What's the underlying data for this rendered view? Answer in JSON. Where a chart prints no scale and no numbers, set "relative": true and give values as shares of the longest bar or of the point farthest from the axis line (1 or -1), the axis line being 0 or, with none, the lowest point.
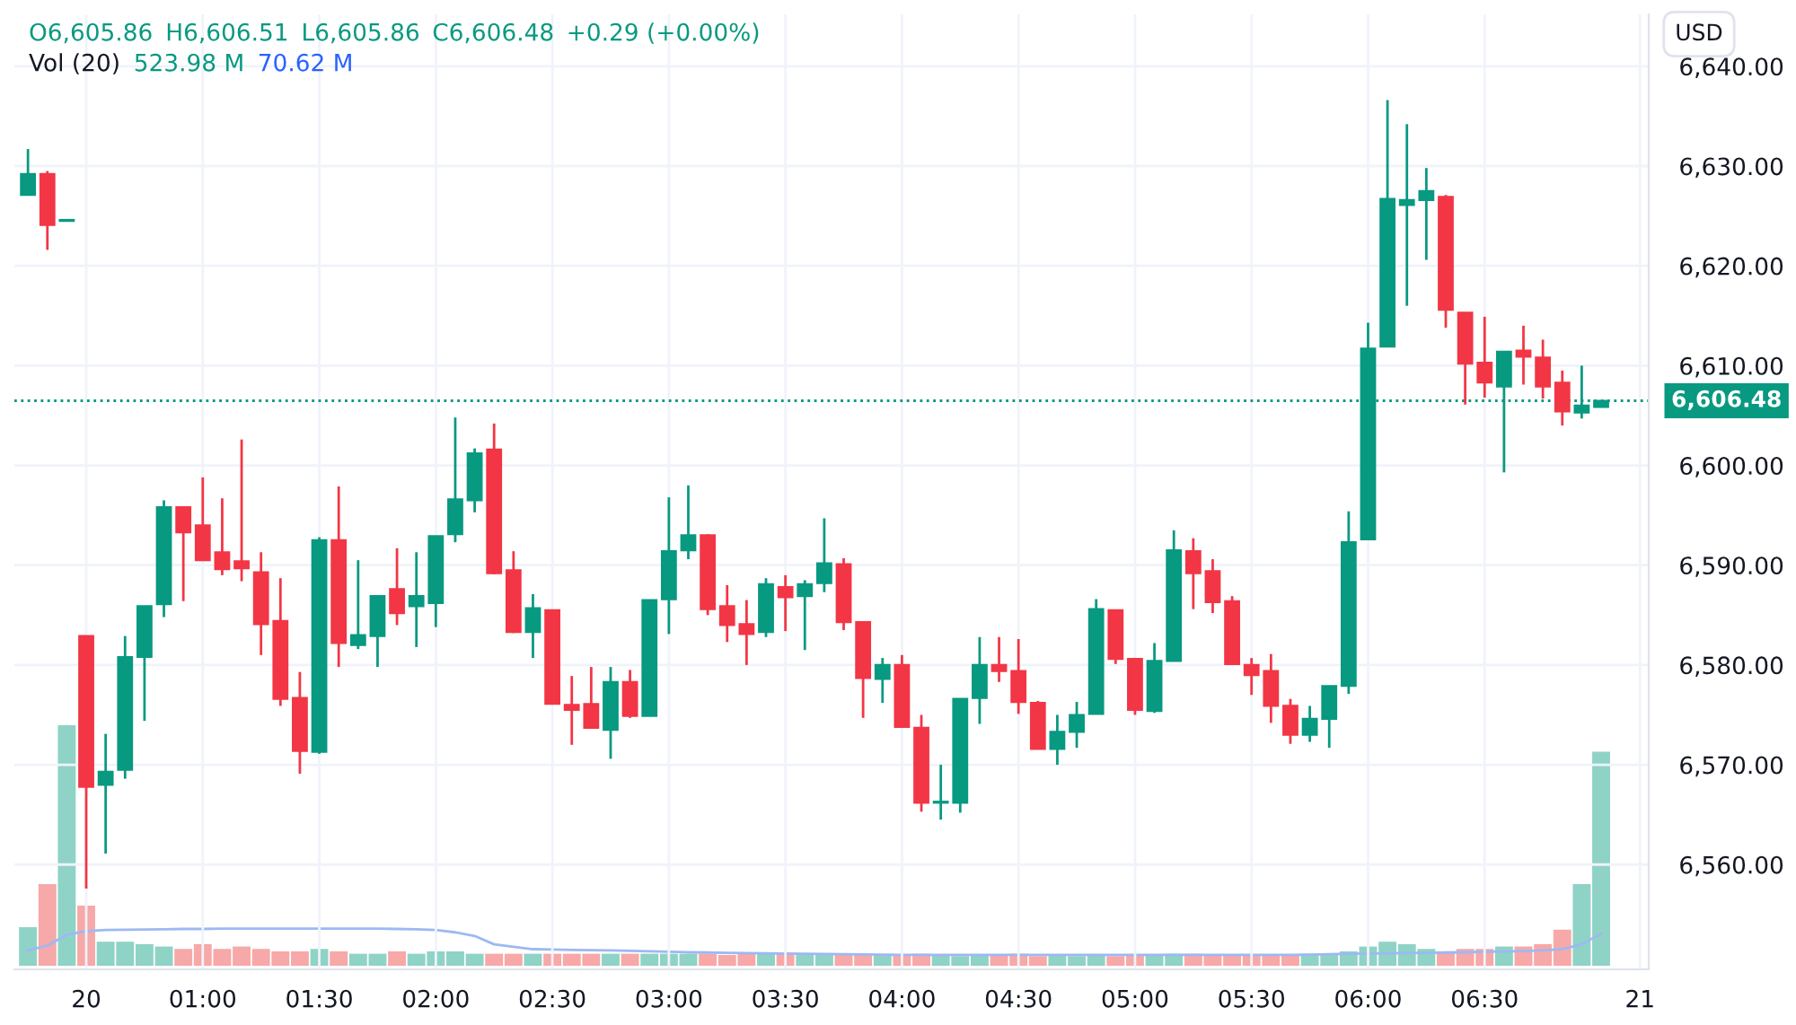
{
  "chart_data": [
    {
      "type": "candlestick",
      "categories": [
        null,
        null,
        null,
        "20",
        null,
        null,
        null,
        null,
        null,
        "01:00",
        null,
        null,
        null,
        null,
        null,
        "01:30",
        null,
        null,
        null,
        null,
        null,
        "02:00",
        null,
        null,
        null,
        null,
        null,
        "02:30",
        null,
        null,
        null,
        null,
        null,
        "03:00",
        null,
        null,
        null,
        null,
        null,
        "03:30",
        null,
        null,
        null,
        null,
        null,
        "04:00",
        null,
        null,
        null,
        null,
        null,
        "04:30",
        null,
        null,
        null,
        null,
        null,
        "05:00",
        null,
        null,
        null,
        null,
        null,
        "05:30",
        null,
        null,
        null,
        null,
        null,
        "06:00",
        null,
        null,
        null,
        null,
        null,
        "06:30",
        null,
        null,
        null,
        null,
        null,
        null,
        null,
        "21"
      ],
      "ohlc": [
        [
          6627.1,
          6631.7,
          6627.1,
          6629.2
        ],
        [
          6629.2,
          6629.5,
          6621.6,
          6624.1
        ],
        [
          6624.5,
          6624.6,
          6624.5,
          6624.6
        ],
        [
          6582.9,
          6582.9,
          6557.6,
          6567.8
        ],
        [
          6568.0,
          6573.1,
          6561.1,
          6569.3
        ],
        [
          6569.5,
          6582.9,
          6568.6,
          6580.8
        ],
        [
          6580.8,
          6585.9,
          6574.4,
          6585.9
        ],
        [
          6586.1,
          6596.5,
          6584.8,
          6595.8
        ],
        [
          6595.8,
          6595.8,
          6586.4,
          6593.3
        ],
        [
          6594.0,
          6598.8,
          6590.5,
          6590.5
        ],
        [
          6591.3,
          6596.7,
          6589.0,
          6589.6
        ],
        [
          6590.4,
          6602.6,
          6588.4,
          6589.7
        ],
        [
          6589.3,
          6591.3,
          6581.0,
          6584.1
        ],
        [
          6584.4,
          6588.7,
          6575.9,
          6576.6
        ],
        [
          6576.7,
          6579.3,
          6569.1,
          6571.4
        ],
        [
          6571.3,
          6592.8,
          6571.1,
          6592.5
        ],
        [
          6592.5,
          6597.9,
          6579.8,
          6582.2
        ],
        [
          6582.0,
          6590.5,
          6581.6,
          6583.0
        ],
        [
          6582.9,
          6586.9,
          6579.8,
          6586.9
        ],
        [
          6587.6,
          6591.7,
          6584.0,
          6585.2
        ],
        [
          6585.9,
          6591.3,
          6581.8,
          6586.9
        ],
        [
          6586.2,
          6592.9,
          6583.8,
          6592.9
        ],
        [
          6593.1,
          6604.8,
          6592.3,
          6596.6
        ],
        [
          6596.5,
          6601.7,
          6595.3,
          6601.2
        ],
        [
          6601.6,
          6604.2,
          6589.1,
          6589.2
        ],
        [
          6589.5,
          6591.4,
          6583.2,
          6583.3
        ],
        [
          6583.3,
          6587.1,
          6580.7,
          6585.7
        ],
        [
          6585.5,
          6585.5,
          6576.1,
          6576.1
        ],
        [
          6576.0,
          6578.9,
          6572.0,
          6575.5
        ],
        [
          6576.1,
          6579.8,
          6573.7,
          6573.7
        ],
        [
          6573.5,
          6579.8,
          6570.6,
          6578.3
        ],
        [
          6578.3,
          6579.5,
          6574.7,
          6574.9
        ],
        [
          6574.9,
          6586.5,
          6574.9,
          6586.5
        ],
        [
          6586.6,
          6596.8,
          6583.1,
          6591.4
        ],
        [
          6591.5,
          6598.0,
          6590.6,
          6593.0
        ],
        [
          6593.0,
          6593.1,
          6585.0,
          6585.6
        ],
        [
          6585.9,
          6588.0,
          6582.3,
          6584.0
        ],
        [
          6584.1,
          6586.5,
          6580.0,
          6583.1
        ],
        [
          6583.3,
          6588.7,
          6582.8,
          6588.1
        ],
        [
          6587.8,
          6589.0,
          6583.4,
          6586.8
        ],
        [
          6586.9,
          6588.5,
          6581.5,
          6588.1
        ],
        [
          6588.2,
          6594.7,
          6587.3,
          6590.2
        ],
        [
          6590.1,
          6590.7,
          6583.5,
          6584.3
        ],
        [
          6584.3,
          6584.3,
          6574.7,
          6578.7
        ],
        [
          6578.6,
          6580.7,
          6576.2,
          6580.0
        ],
        [
          6580.0,
          6581.0,
          6573.8,
          6573.8
        ],
        [
          6573.7,
          6575.0,
          6565.3,
          6566.2
        ],
        [
          6566.2,
          6570.0,
          6564.5,
          6566.3
        ],
        [
          6566.2,
          6576.6,
          6565.2,
          6576.6
        ],
        [
          6576.7,
          6582.8,
          6574.1,
          6580.0
        ],
        [
          6580.0,
          6582.8,
          6578.3,
          6579.4
        ],
        [
          6579.4,
          6582.6,
          6575.1,
          6576.3
        ],
        [
          6576.2,
          6576.4,
          6571.6,
          6571.6
        ],
        [
          6571.6,
          6575.0,
          6570.0,
          6573.3
        ],
        [
          6573.3,
          6576.3,
          6571.7,
          6575.0
        ],
        [
          6575.1,
          6586.6,
          6575.1,
          6585.6
        ],
        [
          6585.5,
          6585.5,
          6580.1,
          6580.6
        ],
        [
          6580.6,
          6580.7,
          6575.0,
          6575.5
        ],
        [
          6575.4,
          6582.2,
          6575.2,
          6580.4
        ],
        [
          6580.4,
          6593.5,
          6580.4,
          6591.5
        ],
        [
          6591.4,
          6592.7,
          6585.6,
          6589.2
        ],
        [
          6589.4,
          6590.6,
          6585.2,
          6586.3
        ],
        [
          6586.4,
          6586.9,
          6580.1,
          6580.1
        ],
        [
          6580.0,
          6580.7,
          6577.0,
          6579.0
        ],
        [
          6579.4,
          6581.1,
          6574.2,
          6575.9
        ],
        [
          6575.9,
          6576.6,
          6572.1,
          6573.0
        ],
        [
          6573.0,
          6575.9,
          6572.3,
          6574.6
        ],
        [
          6574.6,
          6577.9,
          6571.7,
          6577.9
        ],
        [
          6577.9,
          6595.4,
          6577.1,
          6592.3
        ],
        [
          6592.6,
          6614.3,
          6592.6,
          6611.7
        ],
        [
          6611.9,
          6636.6,
          6611.9,
          6626.7
        ],
        [
          6626.1,
          6634.2,
          6616.0,
          6626.6
        ],
        [
          6626.6,
          6629.8,
          6620.6,
          6627.5
        ],
        [
          6626.9,
          6627.1,
          6613.8,
          6615.6
        ],
        [
          6615.3,
          6615.3,
          6606.1,
          6610.2
        ],
        [
          6610.3,
          6614.9,
          6606.8,
          6608.3
        ],
        [
          6607.9,
          6611.4,
          6599.3,
          6611.4
        ],
        [
          6611.5,
          6614.0,
          6608.1,
          6610.9
        ],
        [
          6610.8,
          6612.6,
          6606.7,
          6607.9
        ],
        [
          6608.3,
          6609.5,
          6604.0,
          6605.4
        ],
        [
          6605.3,
          6610.0,
          6604.7,
          6606.0
        ],
        [
          6605.86,
          6606.51,
          6605.86,
          6606.48
        ],
        null,
        null
      ],
      "colors": [
        "#089981",
        "#f23645",
        "#089981",
        "#f23645",
        "#089981",
        "#089981",
        "#089981",
        "#089981",
        "#f23645",
        "#f23645",
        "#f23645",
        "#f23645",
        "#f23645",
        "#f23645",
        "#f23645",
        "#089981",
        "#f23645",
        "#089981",
        "#089981",
        "#f23645",
        "#089981",
        "#089981",
        "#089981",
        "#089981",
        "#f23645",
        "#f23645",
        "#089981",
        "#f23645",
        "#f23645",
        "#f23645",
        "#089981",
        "#f23645",
        "#089981",
        "#089981",
        "#089981",
        "#f23645",
        "#f23645",
        "#f23645",
        "#089981",
        "#f23645",
        "#089981",
        "#089981",
        "#f23645",
        "#f23645",
        "#089981",
        "#f23645",
        "#f23645",
        "#089981",
        "#089981",
        "#089981",
        "#f23645",
        "#f23645",
        "#f23645",
        "#089981",
        "#089981",
        "#089981",
        "#f23645",
        "#f23645",
        "#089981",
        "#089981",
        "#f23645",
        "#f23645",
        "#f23645",
        "#f23645",
        "#f23645",
        "#f23645",
        "#089981",
        "#089981",
        "#089981",
        "#089981",
        "#089981",
        "#089981",
        "#089981",
        "#f23645",
        "#f23645",
        "#f23645",
        "#089981",
        "#f23645",
        "#f23645",
        "#f23645",
        "#089981",
        "#089981",
        null,
        null
      ],
      "ylim": [
        6549.5,
        6645.2
      ],
      "yticks": [
        {
          "value": 6560,
          "label": "6,560.00"
        },
        {
          "value": 6570,
          "label": "6,570.00"
        },
        {
          "value": 6580,
          "label": "6,580.00"
        },
        {
          "value": 6590,
          "label": "6,590.00"
        },
        {
          "value": 6600,
          "label": "6,600.00"
        },
        {
          "value": 6610,
          "label": "6,610.00"
        },
        {
          "value": 6620,
          "label": "6,620.00"
        },
        {
          "value": 6630,
          "label": "6,630.00"
        },
        {
          "value": 6640,
          "label": "6,640.00"
        }
      ],
      "grid": true,
      "ref_lines": [
        {
          "axis": "y",
          "value": 6606.48,
          "label": "6,606.48",
          "color": "#089981",
          "line_style": "dotted"
        }
      ],
      "annotations": [
        "O6,605.86",
        "H6,606.51",
        "L6,605.86",
        "C6,606.48",
        "+0.29 (+0.00%)",
        "Vol (20)",
        "523.98 M",
        "70.62 M",
        "USD"
      ]
    },
    {
      "type": "bar",
      "relative": true,
      "categories": [
        null,
        null,
        null,
        null,
        null,
        null,
        null,
        null,
        null,
        null,
        null,
        null,
        null,
        null,
        null,
        null,
        null,
        null,
        null,
        null,
        null,
        null,
        null,
        null,
        null,
        null,
        null,
        null,
        null,
        null,
        null,
        null,
        null,
        null,
        null,
        null,
        null,
        null,
        null,
        null,
        null,
        null,
        null,
        null,
        null,
        null,
        null,
        null,
        null,
        null,
        null,
        null,
        null,
        null,
        null,
        null,
        null,
        null,
        null,
        null,
        null,
        null,
        null,
        null,
        null,
        null,
        null,
        null,
        null,
        null,
        null,
        null,
        null,
        null,
        null,
        null,
        null,
        null,
        null,
        null,
        null,
        null,
        null,
        null
      ],
      "series": [
        {
          "values": [
            0.16,
            0.34,
            1.0,
            0.25,
            0.1,
            0.1,
            0.09,
            0.08,
            0.07,
            0.09,
            0.07,
            0.08,
            0.07,
            0.06,
            0.06,
            0.07,
            0.06,
            0.05,
            0.05,
            0.06,
            0.05,
            0.06,
            0.06,
            0.05,
            0.05,
            0.05,
            0.05,
            0.05,
            0.05,
            0.05,
            0.05,
            0.05,
            0.05,
            0.05,
            0.05,
            0.05,
            0.045,
            0.05,
            0.05,
            0.05,
            0.05,
            0.045,
            0.045,
            0.045,
            0.045,
            0.045,
            0.05,
            0.045,
            0.04,
            0.045,
            0.045,
            0.05,
            0.04,
            0.045,
            0.04,
            0.045,
            0.04,
            0.045,
            0.045,
            0.05,
            0.05,
            0.045,
            0.045,
            0.045,
            0.045,
            0.045,
            0.05,
            0.045,
            0.06,
            0.08,
            0.1,
            0.09,
            0.07,
            0.06,
            0.07,
            0.07,
            0.08,
            0.08,
            0.09,
            0.15,
            0.34,
            0.89,
            null,
            null
          ],
          "colors": [
            "#8fd3c6",
            "#f7a8a8",
            "#8fd3c6",
            "#f7a8a8",
            "#8fd3c6",
            "#8fd3c6",
            "#8fd3c6",
            "#8fd3c6",
            "#f7a8a8",
            "#f7a8a8",
            "#f7a8a8",
            "#f7a8a8",
            "#f7a8a8",
            "#f7a8a8",
            "#f7a8a8",
            "#8fd3c6",
            "#f7a8a8",
            "#8fd3c6",
            "#8fd3c6",
            "#f7a8a8",
            "#8fd3c6",
            "#8fd3c6",
            "#8fd3c6",
            "#8fd3c6",
            "#f7a8a8",
            "#f7a8a8",
            "#8fd3c6",
            "#f7a8a8",
            "#f7a8a8",
            "#f7a8a8",
            "#8fd3c6",
            "#f7a8a8",
            "#8fd3c6",
            "#8fd3c6",
            "#8fd3c6",
            "#f7a8a8",
            "#f7a8a8",
            "#f7a8a8",
            "#8fd3c6",
            "#f7a8a8",
            "#8fd3c6",
            "#8fd3c6",
            "#f7a8a8",
            "#f7a8a8",
            "#8fd3c6",
            "#f7a8a8",
            "#f7a8a8",
            "#8fd3c6",
            "#8fd3c6",
            "#8fd3c6",
            "#f7a8a8",
            "#f7a8a8",
            "#f7a8a8",
            "#8fd3c6",
            "#8fd3c6",
            "#8fd3c6",
            "#f7a8a8",
            "#f7a8a8",
            "#8fd3c6",
            "#8fd3c6",
            "#f7a8a8",
            "#f7a8a8",
            "#f7a8a8",
            "#f7a8a8",
            "#f7a8a8",
            "#f7a8a8",
            "#8fd3c6",
            "#8fd3c6",
            "#8fd3c6",
            "#8fd3c6",
            "#8fd3c6",
            "#8fd3c6",
            "#8fd3c6",
            "#f7a8a8",
            "#f7a8a8",
            "#f7a8a8",
            "#8fd3c6",
            "#f7a8a8",
            "#f7a8a8",
            "#f7a8a8",
            "#8fd3c6",
            "#8fd3c6",
            null,
            null
          ]
        },
        {
          "type": "line",
          "color": "#9db9f2",
          "values": [
            0.064,
            0.084,
            0.129,
            0.144,
            0.149,
            0.15,
            0.151,
            0.152,
            0.153,
            0.153,
            0.154,
            0.154,
            0.154,
            0.154,
            0.154,
            0.154,
            0.154,
            0.154,
            0.154,
            0.153,
            0.152,
            0.149,
            0.139,
            0.124,
            0.089,
            0.079,
            0.069,
            0.068,
            0.066,
            0.065,
            0.064,
            0.062,
            0.06,
            0.058,
            0.056,
            0.055,
            0.054,
            0.053,
            0.052,
            0.051,
            0.05,
            0.049,
            0.048,
            0.047,
            0.046,
            0.045,
            0.045,
            0.045,
            0.045,
            0.045,
            0.045,
            0.045,
            0.045,
            0.045,
            0.045,
            0.045,
            0.045,
            0.045,
            0.045,
            0.045,
            0.045,
            0.045,
            0.045,
            0.045,
            0.045,
            0.045,
            0.046,
            0.048,
            0.05,
            0.051,
            0.052,
            0.053,
            0.054,
            0.055,
            0.056,
            0.058,
            0.059,
            0.061,
            0.064,
            0.069,
            0.089,
            0.134,
            null,
            null
          ]
        }
      ]
    }
  ]
}
